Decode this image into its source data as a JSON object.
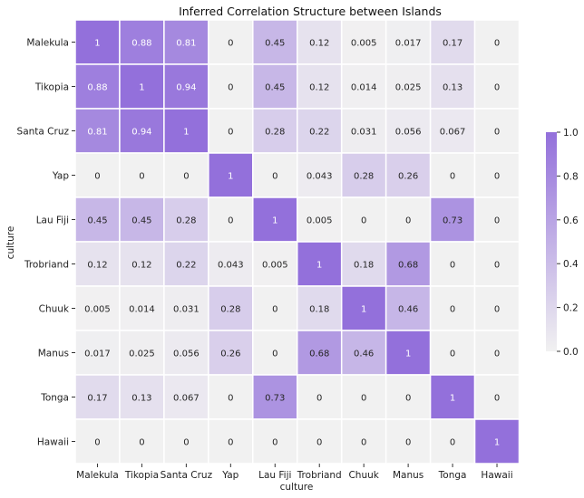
{
  "chart_data": {
    "type": "heatmap",
    "title": "Inferred Correlation Structure between Islands",
    "xlabel": "culture",
    "ylabel": "culture",
    "x_categories": [
      "Malekula",
      "Tikopia",
      "Santa Cruz",
      "Yap",
      "Lau Fiji",
      "Trobriand",
      "Chuuk",
      "Manus",
      "Tonga",
      "Hawaii"
    ],
    "y_categories": [
      "Malekula",
      "Tikopia",
      "Santa Cruz",
      "Yap",
      "Lau Fiji",
      "Trobriand",
      "Chuuk",
      "Manus",
      "Tonga",
      "Hawaii"
    ],
    "values": [
      [
        1,
        0.88,
        0.81,
        0,
        0.45,
        0.12,
        0.005,
        0.017,
        0.17,
        0
      ],
      [
        0.88,
        1,
        0.94,
        0,
        0.45,
        0.12,
        0.014,
        0.025,
        0.13,
        0
      ],
      [
        0.81,
        0.94,
        1,
        0,
        0.28,
        0.22,
        0.031,
        0.056,
        0.067,
        0
      ],
      [
        0,
        0,
        0,
        1,
        0,
        0.043,
        0.28,
        0.26,
        0,
        0
      ],
      [
        0.45,
        0.45,
        0.28,
        0,
        1,
        0.005,
        0,
        0,
        0.73,
        0
      ],
      [
        0.12,
        0.12,
        0.22,
        0.043,
        0.005,
        1,
        0.18,
        0.68,
        0,
        0
      ],
      [
        0.005,
        0.014,
        0.031,
        0.28,
        0,
        0.18,
        1,
        0.46,
        0,
        0
      ],
      [
        0.017,
        0.025,
        0.056,
        0.26,
        0,
        0.68,
        0.46,
        1,
        0,
        0
      ],
      [
        0.17,
        0.13,
        0.067,
        0,
        0.73,
        0,
        0,
        0,
        1,
        0
      ],
      [
        0,
        0,
        0,
        0,
        0,
        0,
        0,
        0,
        0,
        1
      ]
    ],
    "cell_labels": [
      [
        "1",
        "0.88",
        "0.81",
        "0",
        "0.45",
        "0.12",
        "0.005",
        "0.017",
        "0.17",
        "0"
      ],
      [
        "0.88",
        "1",
        "0.94",
        "0",
        "0.45",
        "0.12",
        "0.014",
        "0.025",
        "0.13",
        "0"
      ],
      [
        "0.81",
        "0.94",
        "1",
        "0",
        "0.28",
        "0.22",
        "0.031",
        "0.056",
        "0.067",
        "0"
      ],
      [
        "0",
        "0",
        "0",
        "1",
        "0",
        "0.043",
        "0.28",
        "0.26",
        "0",
        "0"
      ],
      [
        "0.45",
        "0.45",
        "0.28",
        "0",
        "1",
        "0.005",
        "0",
        "0",
        "0.73",
        "0"
      ],
      [
        "0.12",
        "0.12",
        "0.22",
        "0.043",
        "0.005",
        "1",
        "0.18",
        "0.68",
        "0",
        "0"
      ],
      [
        "0.005",
        "0.014",
        "0.031",
        "0.28",
        "0",
        "0.18",
        "1",
        "0.46",
        "0",
        "0"
      ],
      [
        "0.017",
        "0.025",
        "0.056",
        "0.26",
        "0",
        "0.68",
        "0.46",
        "1",
        "0",
        "0"
      ],
      [
        "0.17",
        "0.13",
        "0.067",
        "0",
        "0.73",
        "0",
        "0",
        "0",
        "1",
        "0"
      ],
      [
        "0",
        "0",
        "0",
        "0",
        "0",
        "0",
        "0",
        "0",
        "0",
        "1"
      ]
    ],
    "vmin": 0,
    "vmax": 1,
    "colorbar": {
      "ticks": [
        0,
        0.2,
        0.4,
        0.6,
        0.8,
        1
      ],
      "tick_labels": [
        "0.0",
        "0.2",
        "0.4",
        "0.6",
        "0.8",
        "1.0"
      ],
      "placement": "right"
    },
    "colors": {
      "low": "#f1f1f1",
      "high": "#9370db",
      "grid_lines": "#ffffff",
      "text_dark": "#262626",
      "text_light": "#ffffff"
    },
    "grid": false
  }
}
